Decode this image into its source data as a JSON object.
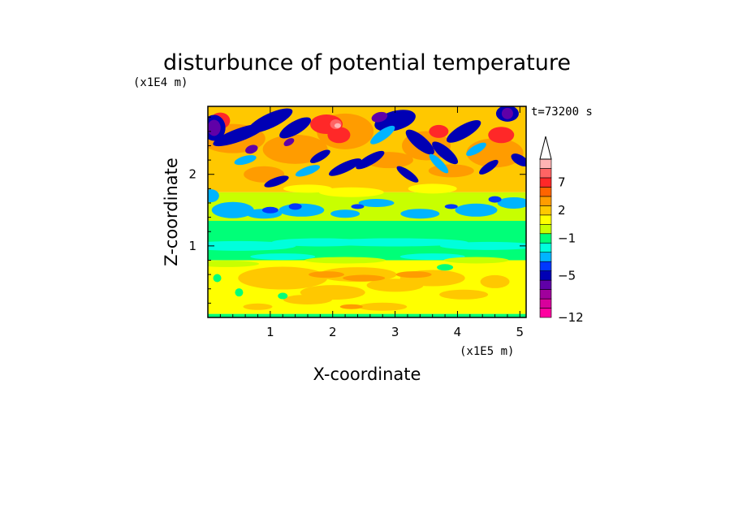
{
  "chart_data": {
    "type": "heatmap",
    "title": "disturbunce of potential temperature",
    "time_label": "t=73200 s",
    "x": {
      "label": "X-coordinate",
      "multiplier": "(x1E5 m)",
      "range": [
        0,
        5.1
      ],
      "ticks": [
        1,
        2,
        3,
        4,
        5
      ],
      "tick_labels": [
        "1",
        "2",
        "3",
        "4",
        "5"
      ]
    },
    "y": {
      "label": "Z-coordinate",
      "multiplier": "(x1E4 m)",
      "range": [
        0,
        2.95
      ],
      "ticks": [
        1,
        2
      ],
      "tick_labels": [
        "1",
        "2"
      ]
    },
    "colorbar": {
      "labeled_levels": [
        "7",
        "2",
        "−1",
        "−5",
        "−12"
      ],
      "colors": [
        "#ff00a0",
        "#d8009c",
        "#a0009c",
        "#6000a8",
        "#0000b4",
        "#0038ff",
        "#00b4ff",
        "#00ffdc",
        "#00ff78",
        "#c8ff00",
        "#ffff00",
        "#ffc800",
        "#ff9c00",
        "#ff6400",
        "#ff2828",
        "#ff6464",
        "#ffb4b4"
      ],
      "extend_top": true
    }
  }
}
